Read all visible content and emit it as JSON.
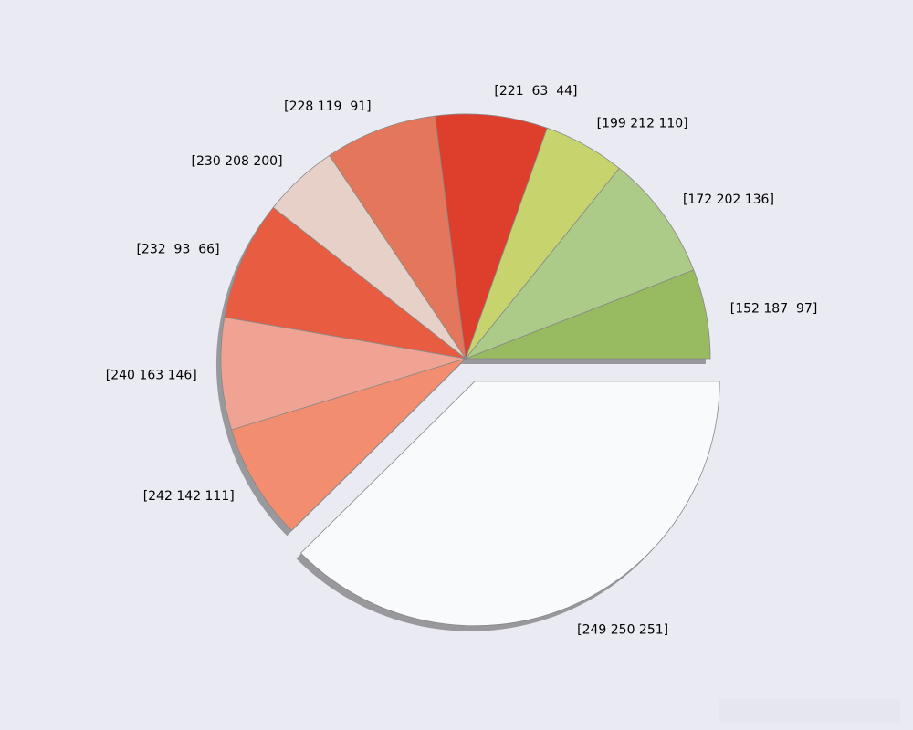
{
  "chart_data": {
    "type": "pie",
    "categories": [
      "[152 187  97]",
      "[172 202 136]",
      "[199 212 110]",
      "[221  63  44]",
      "[228 119  91]",
      "[230 208 200]",
      "[232  93  66]",
      "[240 163 146]",
      "[242 142 111]",
      "[249 250 251]"
    ],
    "values": [
      5.9,
      8.3,
      5.4,
      7.4,
      7.4,
      5.0,
      7.9,
      7.4,
      7.7,
      37.6
    ],
    "colors": [
      "#98bb61",
      "#acca88",
      "#c7d46e",
      "#dd3f2c",
      "#e4775b",
      "#e6d0c8",
      "#e85d42",
      "#f0a392",
      "#f28e6f",
      "#f9fafb"
    ],
    "explode": [
      0,
      0,
      0,
      0,
      0,
      0,
      0,
      0,
      0,
      0.1
    ],
    "shadow": true,
    "startangle": 0,
    "counterclock": true
  }
}
